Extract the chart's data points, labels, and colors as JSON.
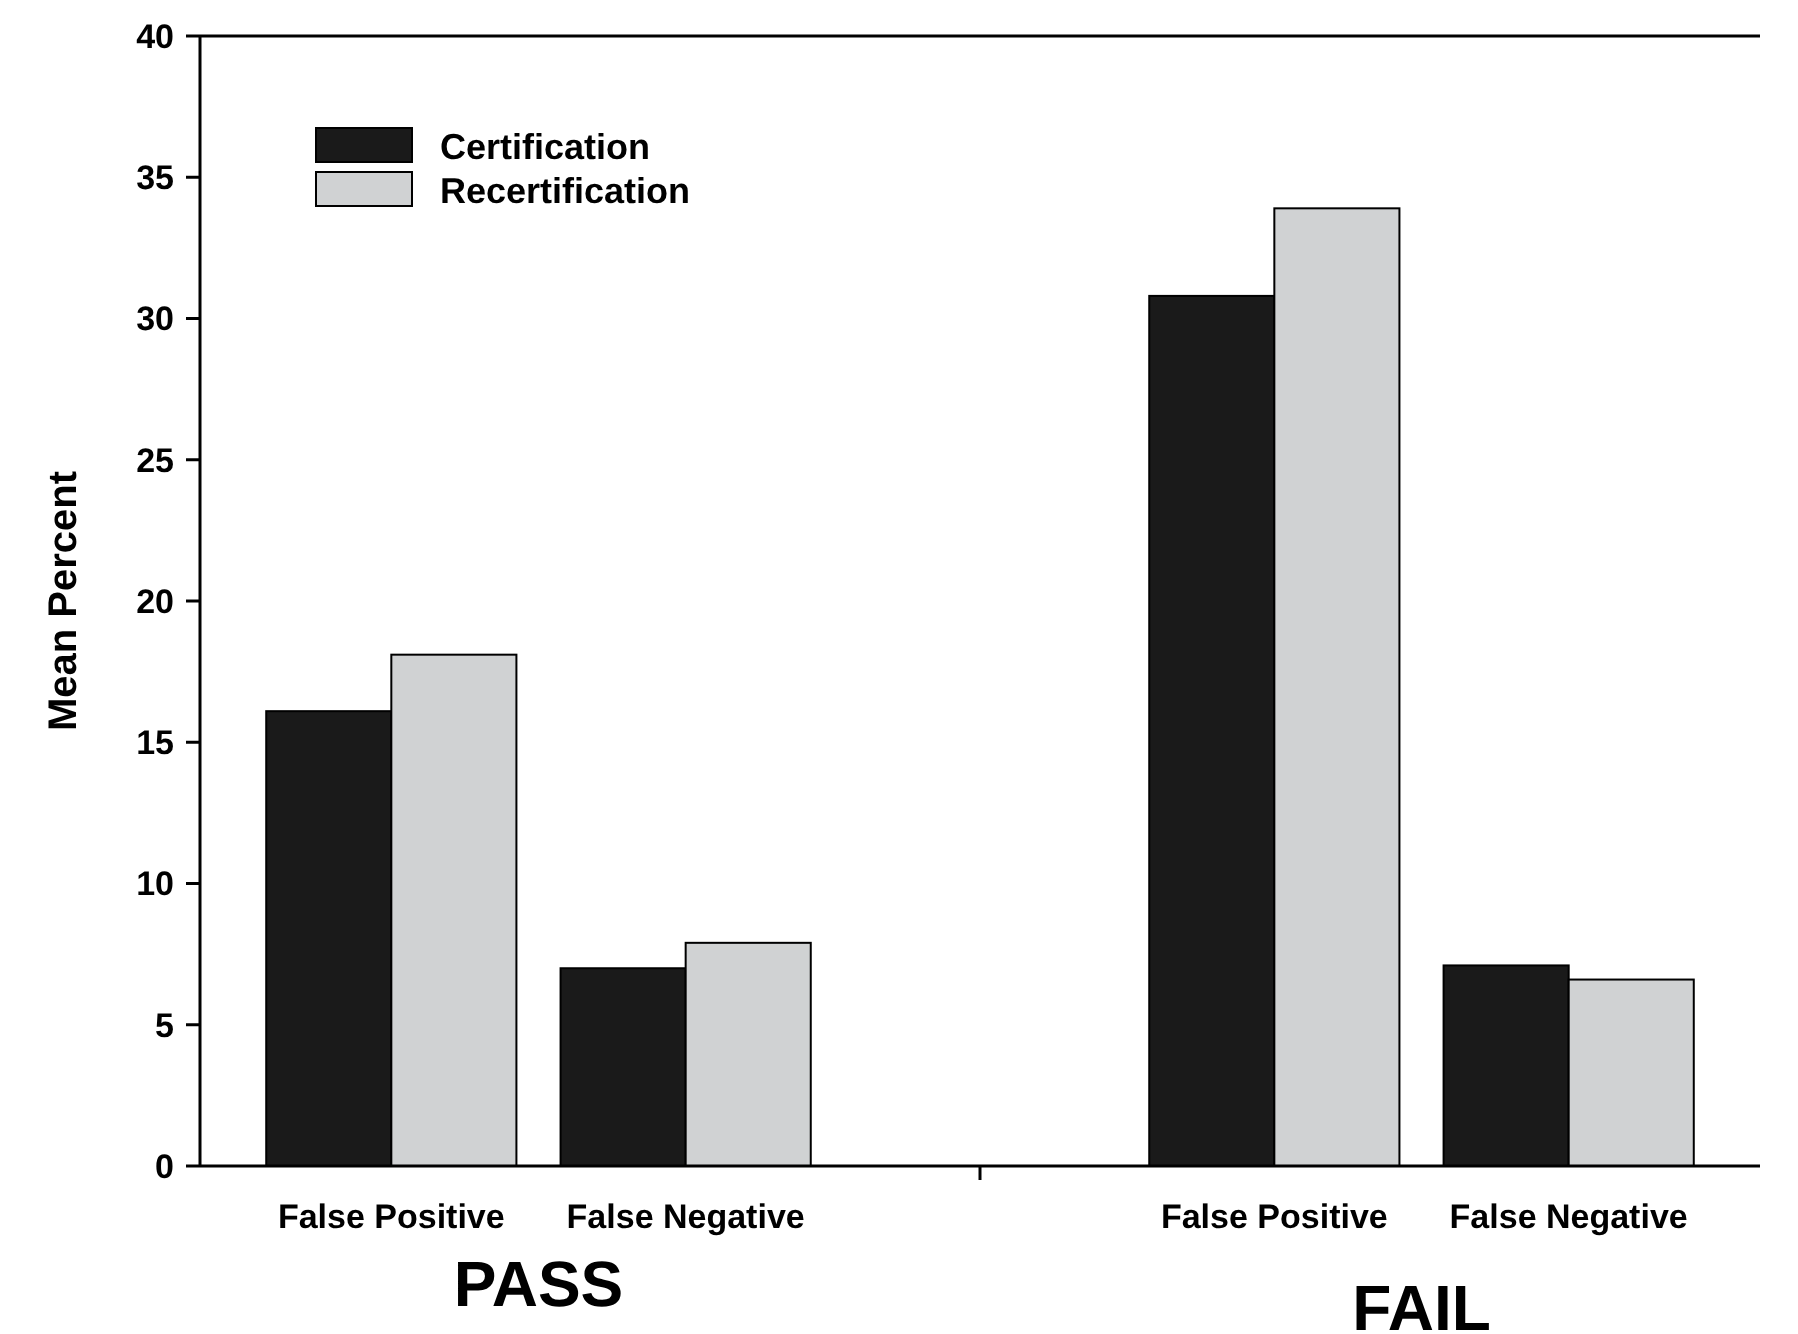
{
  "chart_data": {
    "type": "bar",
    "ylabel": "Mean Percent",
    "categories": [
      "False Positive",
      "False Negative",
      null,
      "False Positive",
      "False Negative"
    ],
    "series": [
      {
        "name": "Certification",
        "color": "#1a1a1a",
        "values": [
          16.1,
          7.0,
          null,
          30.8,
          7.1
        ]
      },
      {
        "name": "Recertification",
        "color": "#d0d2d3",
        "values": [
          18.1,
          7.9,
          null,
          33.9,
          6.6
        ]
      }
    ],
    "annotations": [
      "PASS",
      "FAIL"
    ],
    "ylim": [
      0,
      40
    ],
    "yticks": [
      0,
      5,
      10,
      15,
      20,
      25,
      30,
      35,
      40
    ],
    "grid": false,
    "legend": "top left"
  }
}
